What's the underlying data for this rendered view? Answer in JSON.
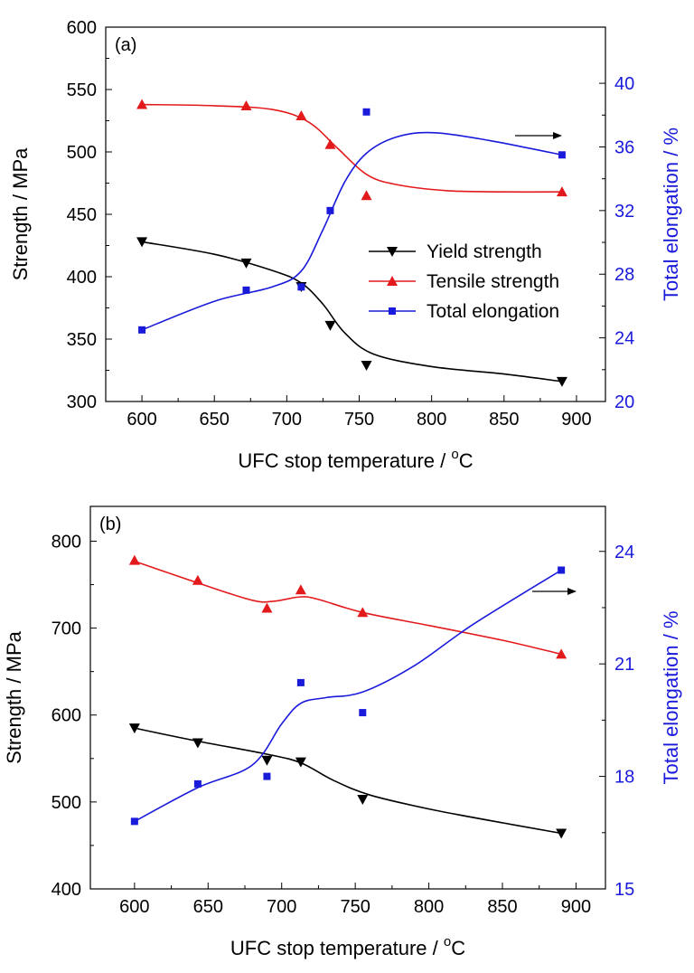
{
  "chart_data": [
    {
      "type": "line",
      "panel_label": "(a)",
      "xlabel": "UFC stop temperature / °C",
      "xlabel_parts": {
        "prefix": "UFC stop temperature / ",
        "sup": "o",
        "suffix": "C"
      },
      "ylabel_left": "Strength / MPa",
      "ylabel_right": "Total elongation / %",
      "xlim": [
        575,
        920
      ],
      "ylim_left": [
        300,
        600
      ],
      "ylim_right": [
        20,
        43.53
      ],
      "xticks": [
        600,
        650,
        700,
        750,
        800,
        850,
        900
      ],
      "yticks_left": [
        300,
        350,
        400,
        450,
        500,
        550,
        600
      ],
      "yticks_right": [
        20,
        24,
        28,
        32,
        36,
        40
      ],
      "legend_position": "center-right",
      "arrow_annotation": "points to right axis",
      "series": [
        {
          "name": "Yield strength",
          "axis": "left",
          "color": "#000000",
          "marker": "triangle-down",
          "points": [
            [
              600,
              428
            ],
            [
              672,
              411
            ],
            [
              710,
              392
            ],
            [
              730,
              361
            ],
            [
              755,
              329
            ],
            [
              890,
              316
            ]
          ],
          "fit": [
            [
              600,
              428
            ],
            [
              650,
              418
            ],
            [
              690,
              405
            ],
            [
              710,
              395
            ],
            [
              725,
              378
            ],
            [
              740,
              355
            ],
            [
              760,
              338
            ],
            [
              800,
              328
            ],
            [
              850,
              322
            ],
            [
              890,
              316
            ]
          ]
        },
        {
          "name": "Tensile strength",
          "axis": "left",
          "color": "#e31a1c",
          "marker": "triangle-up",
          "points": [
            [
              600,
              538
            ],
            [
              672,
              537
            ],
            [
              710,
              529
            ],
            [
              730,
              506
            ],
            [
              755,
              465
            ],
            [
              890,
              468
            ]
          ],
          "fit": [
            [
              600,
              538
            ],
            [
              650,
              537
            ],
            [
              690,
              534
            ],
            [
              715,
              524
            ],
            [
              735,
              503
            ],
            [
              755,
              482
            ],
            [
              775,
              474
            ],
            [
              810,
              469
            ],
            [
              850,
              468
            ],
            [
              890,
              468
            ]
          ]
        },
        {
          "name": "Total elongation",
          "axis": "right",
          "color": "#1a1adb",
          "marker": "square",
          "points": [
            [
              600,
              24.5
            ],
            [
              672,
              27.0
            ],
            [
              710,
              27.2
            ],
            [
              730,
              32.0
            ],
            [
              755,
              38.2
            ],
            [
              890,
              35.5
            ]
          ],
          "fit": [
            [
              600,
              24.5
            ],
            [
              650,
              26.3
            ],
            [
              690,
              27.2
            ],
            [
              710,
              28.2
            ],
            [
              725,
              30.8
            ],
            [
              740,
              33.8
            ],
            [
              755,
              35.6
            ],
            [
              775,
              36.6
            ],
            [
              800,
              36.9
            ],
            [
              840,
              36.4
            ],
            [
              890,
              35.5
            ]
          ]
        }
      ]
    },
    {
      "type": "line",
      "panel_label": "(b)",
      "xlabel": "UFC stop temperature / °C",
      "xlabel_parts": {
        "prefix": "UFC stop temperature / ",
        "sup": "o",
        "suffix": "C"
      },
      "ylabel_left": "Strength / MPa",
      "ylabel_right": "Total elongation / %",
      "xlim": [
        570,
        920
      ],
      "ylim_left": [
        400,
        840
      ],
      "ylim_right": [
        15,
        25.2
      ],
      "xticks": [
        600,
        650,
        700,
        750,
        800,
        850,
        900
      ],
      "yticks_left": [
        400,
        500,
        600,
        700,
        800
      ],
      "yticks_right": [
        15,
        18,
        21,
        24
      ],
      "arrow_annotation": "points to right axis",
      "series": [
        {
          "name": "Yield strength",
          "axis": "left",
          "color": "#000000",
          "marker": "triangle-down",
          "points": [
            [
              600,
              585
            ],
            [
              643,
              568
            ],
            [
              690,
              548
            ],
            [
              713,
              546
            ],
            [
              755,
              503
            ],
            [
              890,
              464
            ]
          ],
          "fit": [
            [
              600,
              585
            ],
            [
              643,
              570
            ],
            [
              690,
              555
            ],
            [
              713,
              545
            ],
            [
              735,
              525
            ],
            [
              760,
              508
            ],
            [
              800,
              492
            ],
            [
              850,
              476
            ],
            [
              890,
              464
            ]
          ]
        },
        {
          "name": "Tensile strength",
          "axis": "left",
          "color": "#e31a1c",
          "marker": "triangle-up",
          "points": [
            [
              600,
              778
            ],
            [
              643,
              755
            ],
            [
              690,
              723
            ],
            [
              713,
              744
            ],
            [
              755,
              718
            ],
            [
              890,
              670
            ]
          ],
          "fit": [
            [
              600,
              777
            ],
            [
              643,
              752
            ],
            [
              680,
              732
            ],
            [
              695,
              731
            ],
            [
              713,
              736
            ],
            [
              725,
              733
            ],
            [
              755,
              718
            ],
            [
              800,
              703
            ],
            [
              850,
              686
            ],
            [
              890,
              670
            ]
          ]
        },
        {
          "name": "Total elongation",
          "axis": "right",
          "color": "#1a1adb",
          "marker": "square",
          "points": [
            [
              600,
              16.8
            ],
            [
              643,
              17.8
            ],
            [
              690,
              18.0
            ],
            [
              713,
              20.5
            ],
            [
              755,
              19.7
            ],
            [
              890,
              23.5
            ]
          ],
          "fit": [
            [
              600,
              16.8
            ],
            [
              643,
              17.7
            ],
            [
              680,
              18.3
            ],
            [
              700,
              19.4
            ],
            [
              713,
              19.95
            ],
            [
              730,
              20.1
            ],
            [
              755,
              20.25
            ],
            [
              790,
              20.95
            ],
            [
              830,
              22.05
            ],
            [
              890,
              23.5
            ]
          ]
        }
      ]
    }
  ]
}
